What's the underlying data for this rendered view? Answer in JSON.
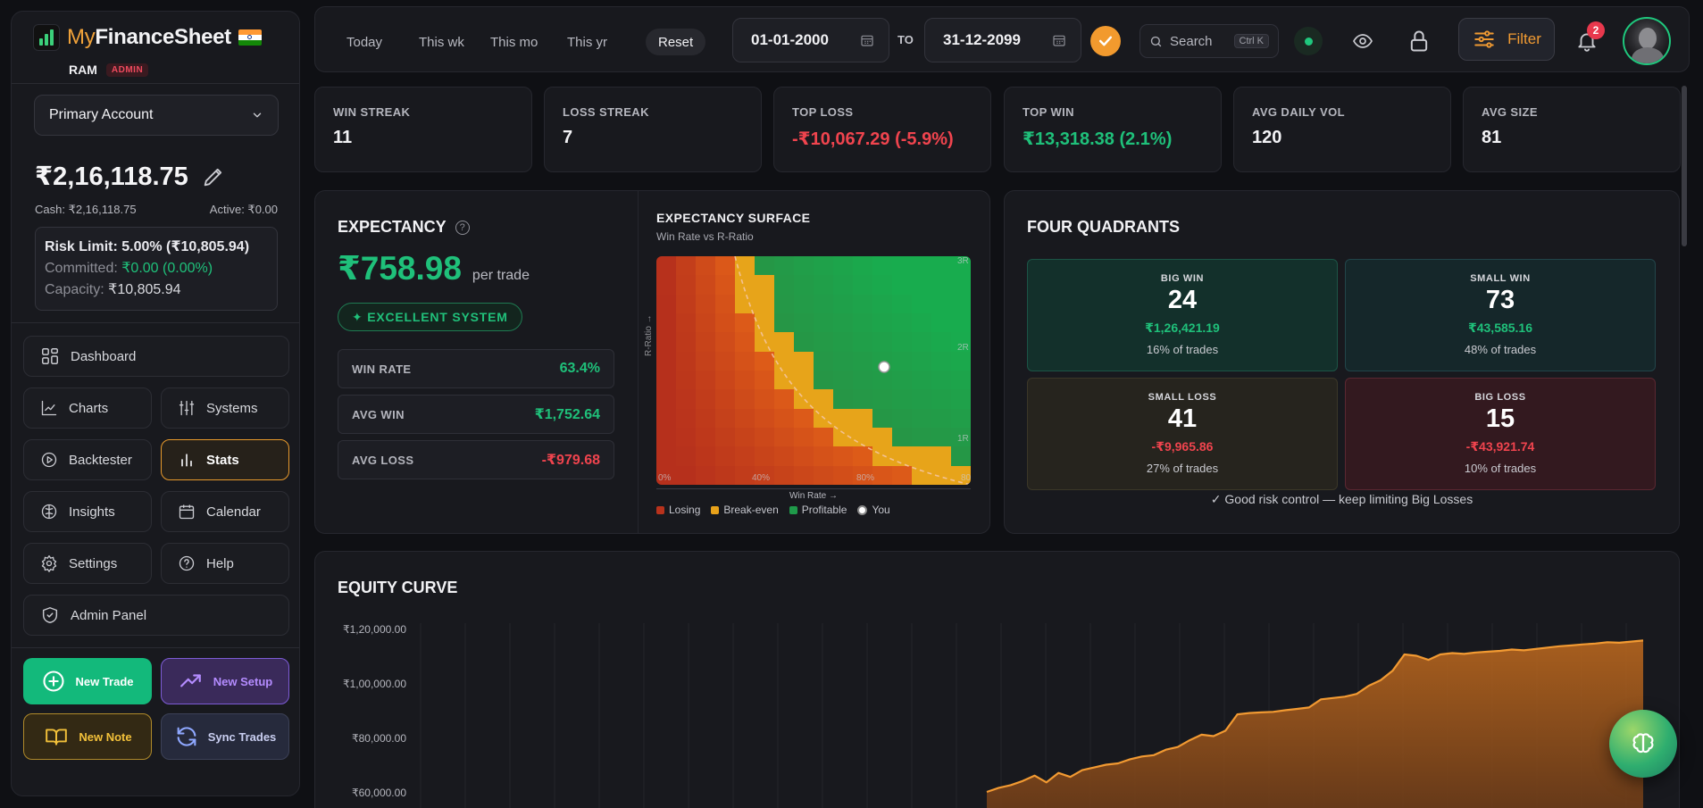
{
  "brand": {
    "name_part1": "My",
    "name_part2": "FinanceSheet"
  },
  "user": {
    "name": "RAM",
    "role_badge": "ADMIN"
  },
  "account": {
    "selected": "Primary Account",
    "balance": "₹2,16,118.75",
    "cash": "Cash: ₹2,16,118.75",
    "active": "Active: ₹0.00"
  },
  "risk": {
    "limit": "Risk Limit: 5.00% (₹10,805.94)",
    "committed_label": "Committed: ",
    "committed_value": "₹0.00 (0.00%)",
    "capacity_label": "Capacity: ",
    "capacity_value": "₹10,805.94"
  },
  "nav": {
    "dashboard": "Dashboard",
    "charts": "Charts",
    "systems": "Systems",
    "backtester": "Backtester",
    "stats": "Stats",
    "insights": "Insights",
    "calendar": "Calendar",
    "settings": "Settings",
    "help": "Help",
    "admin": "Admin Panel"
  },
  "actions": {
    "new_trade": "New Trade",
    "new_setup": "New Setup",
    "new_note": "New Note",
    "sync_trades": "Sync Trades"
  },
  "topbar": {
    "ranges": [
      "Today",
      "This wk",
      "This mo",
      "This yr",
      "Reset"
    ],
    "date_from": "01-01-2000",
    "to_label": "TO",
    "date_to": "31-12-2099",
    "search_placeholder": "Search",
    "search_shortcut": "Ctrl K",
    "filter_label": "Filter",
    "notification_count": "2"
  },
  "stats": [
    {
      "label": "WIN STREAK",
      "value": "11",
      "tone": "neutral"
    },
    {
      "label": "LOSS STREAK",
      "value": "7",
      "tone": "neutral"
    },
    {
      "label": "TOP LOSS",
      "value": "-₹10,067.29 (-5.9%)",
      "tone": "red"
    },
    {
      "label": "TOP WIN",
      "value": "₹13,318.38 (2.1%)",
      "tone": "green"
    },
    {
      "label": "AVG DAILY VOL",
      "value": "120",
      "tone": "neutral"
    },
    {
      "label": "AVG SIZE",
      "value": "81",
      "tone": "neutral"
    }
  ],
  "expectancy": {
    "title": "EXPECTANCY",
    "value": "₹758.98",
    "unit": "per trade",
    "badge": "✦ EXCELLENT SYSTEM",
    "win_rate_label": "WIN RATE",
    "win_rate": "63.4%",
    "avg_win_label": "AVG WIN",
    "avg_win": "₹1,752.64",
    "avg_loss_label": "AVG LOSS",
    "avg_loss": "-₹979.68"
  },
  "surface": {
    "title": "EXPECTANCY SURFACE",
    "subtitle": "Win Rate vs R-Ratio",
    "x_title": "Win Rate →",
    "y_title": "R-Ratio →",
    "x_ticks": [
      "0%",
      "40%",
      "80%",
      "80"
    ],
    "y_ticks": [
      "3R",
      "2R",
      "1R"
    ],
    "legend": {
      "losing": "Losing",
      "breakeven": "Break-even",
      "profitable": "Profitable",
      "you": "You"
    },
    "colors": {
      "losing": "#b8321c",
      "breakeven": "#e8a21a",
      "profitable": "#1f9a4a"
    }
  },
  "quadrants": {
    "title": "FOUR QUADRANTS",
    "big_win": {
      "label": "BIG WIN",
      "count": "24",
      "amount": "₹1,26,421.19",
      "pct": "16% of trades"
    },
    "small_win": {
      "label": "SMALL WIN",
      "count": "73",
      "amount": "₹43,585.16",
      "pct": "48% of trades"
    },
    "small_loss": {
      "label": "SMALL LOSS",
      "count": "41",
      "amount": "-₹9,965.86",
      "pct": "27% of trades"
    },
    "big_loss": {
      "label": "BIG LOSS",
      "count": "15",
      "amount": "-₹43,921.74",
      "pct": "10% of trades"
    },
    "note": "✓ Good risk control — keep limiting Big Losses"
  },
  "equity": {
    "title": "EQUITY CURVE",
    "y_ticks": [
      "₹1,20,000.00",
      "₹1,00,000.00",
      "₹80,000.00",
      "₹60,000.00"
    ]
  },
  "chart_data": {
    "type": "area",
    "title": "EQUITY CURVE",
    "ylim": [
      60000,
      120000
    ],
    "y": [
      60000,
      61500,
      62500,
      64000,
      66000,
      63500,
      67000,
      65500,
      68000,
      69000,
      70000,
      70500,
      72000,
      73000,
      73500,
      75500,
      76500,
      79000,
      81000,
      80500,
      82500,
      88500,
      89000,
      89200,
      89400,
      90000,
      90500,
      91000,
      94000,
      94500,
      95000,
      96000,
      99000,
      101000,
      104500,
      110500,
      110000,
      108500,
      110500,
      111000,
      110700,
      111200,
      111500,
      111800,
      112300,
      112000,
      112500,
      113000,
      113500,
      113800,
      114200,
      114500,
      115000,
      114800,
      115200,
      115600
    ]
  }
}
